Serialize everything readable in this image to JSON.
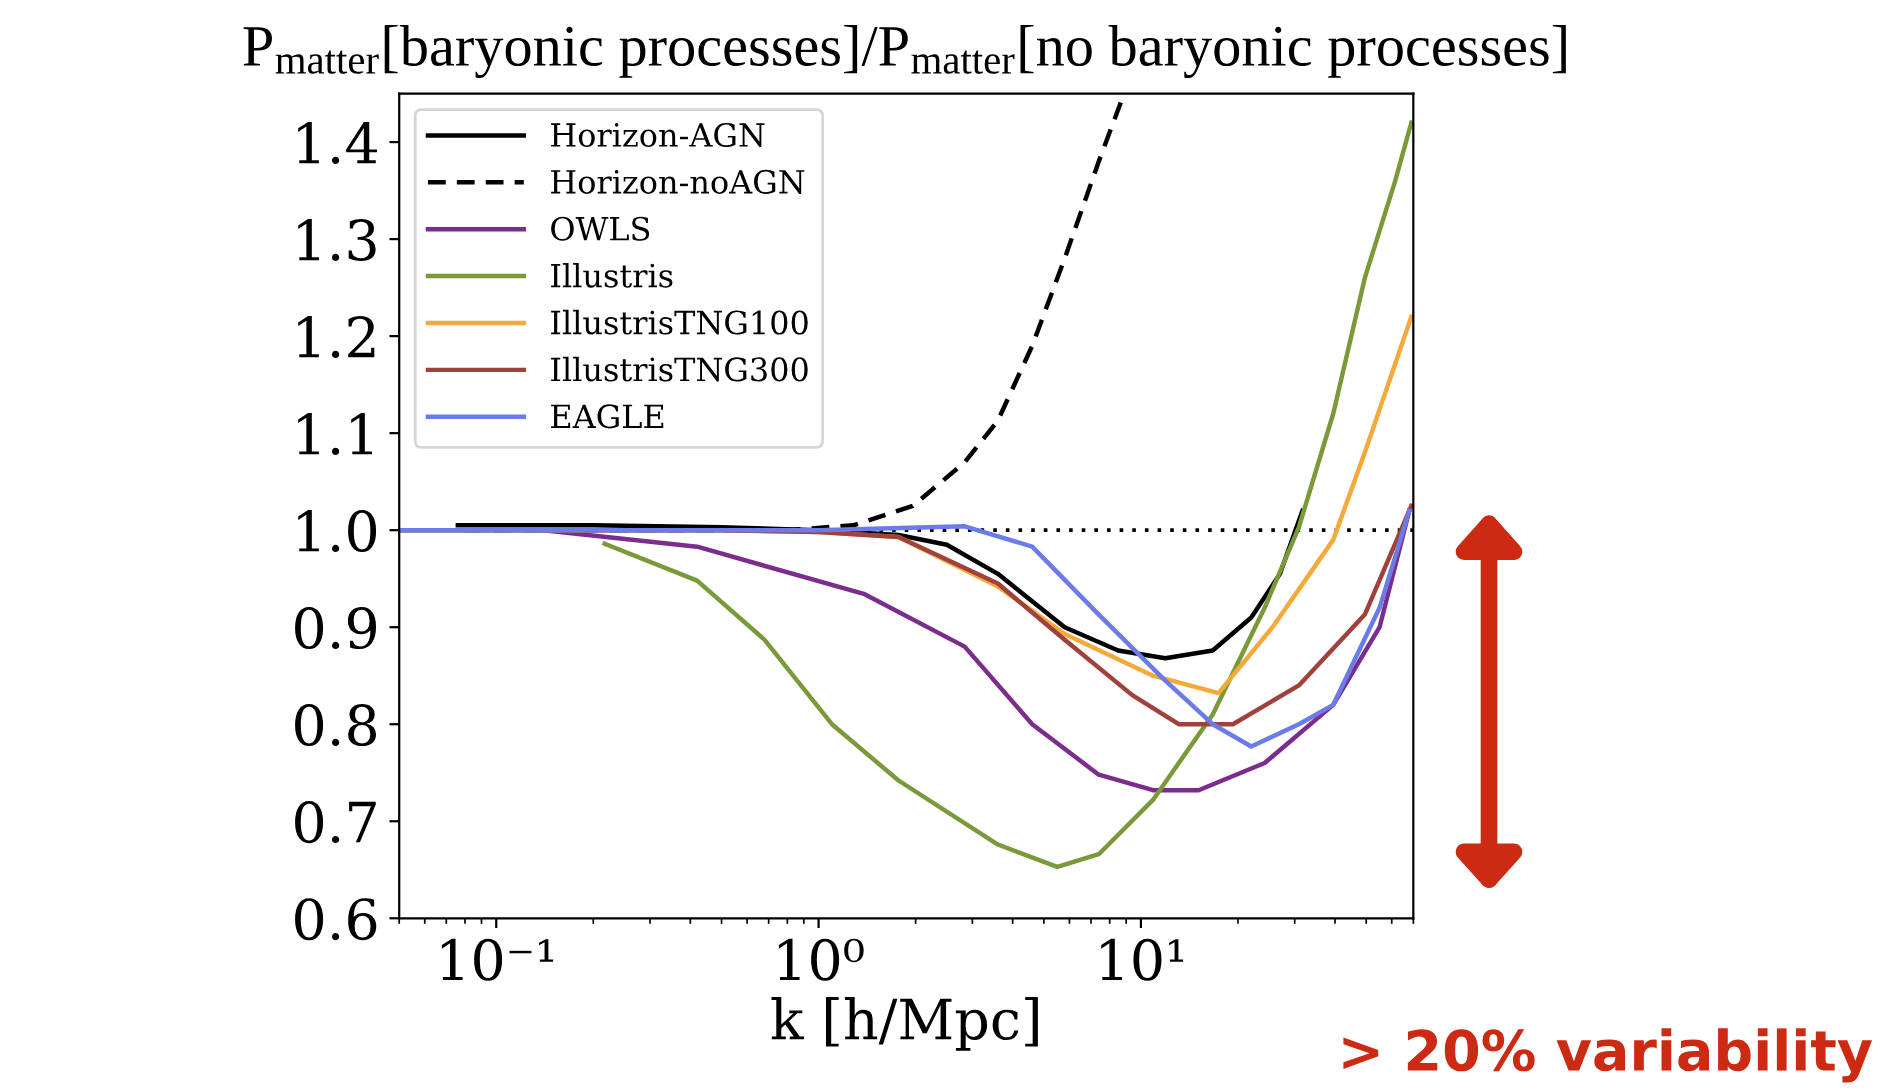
{
  "chart_data": {
    "type": "line",
    "title": "P$_{matter}$[baryonic processes]/P$_{matter}$[no baryonic processes]",
    "xlabel": "k [h/Mpc]",
    "log": "x",
    "xlim": [
      0.05,
      70
    ],
    "ylim": [
      0.6,
      1.45
    ],
    "xticks": [
      {
        "value": 0.1,
        "label": "10⁻¹"
      },
      {
        "value": 1,
        "label": "10⁰"
      },
      {
        "value": 10,
        "label": "10¹"
      }
    ],
    "yticks": [
      0.6,
      0.7,
      0.8,
      0.9,
      {
        "value": 1,
        "label": "1.0"
      },
      1.1,
      1.2,
      1.3,
      1.4
    ],
    "grid": false,
    "legend": "top left",
    "marker": "none",
    "ref_lines": [
      {
        "axis": "y",
        "value": 1.0,
        "label": null,
        "color": "#000000",
        "line_style": "dotted"
      }
    ],
    "annotations": [
      "> 20% variability"
    ],
    "series": [
      {
        "name": "Horizon-AGN",
        "color": "#000000",
        "line_style": "solid",
        "x": [
          0.076,
          0.2,
          0.5,
          1.0,
          1.77,
          2.5,
          3.6,
          5.8,
          8.5,
          11.9,
          16.7,
          22,
          27,
          31.7
        ],
        "values": [
          1.005,
          1.005,
          1.003,
          1.0,
          0.995,
          0.985,
          0.955,
          0.9,
          0.876,
          0.868,
          0.876,
          0.91,
          0.955,
          1.02
        ]
      },
      {
        "name": "Horizon-noAGN",
        "color": "#000000",
        "line_style": "dashed",
        "x": [
          0.08,
          0.3,
          0.8,
          1.28,
          1.96,
          2.84,
          3.6,
          4.6,
          5.8,
          7.4,
          8.8
        ],
        "values": [
          1.0,
          1.0,
          1.0,
          1.005,
          1.025,
          1.07,
          1.113,
          1.19,
          1.28,
          1.38,
          1.447
        ]
      },
      {
        "name": "OWLS",
        "color": "#7b2d8e",
        "line_style": "solid",
        "x": [
          0.14,
          0.42,
          1.39,
          2.84,
          4.6,
          7.4,
          10.9,
          15.1,
          24.2,
          39.5,
          55,
          68
        ],
        "values": [
          1.0,
          0.983,
          0.934,
          0.88,
          0.8,
          0.748,
          0.732,
          0.732,
          0.76,
          0.82,
          0.9,
          1.02
        ]
      },
      {
        "name": "Illustris",
        "color": "#7a9a3a",
        "line_style": "solid",
        "x": [
          0.217,
          0.42,
          0.68,
          1.1,
          1.77,
          3.6,
          5.5,
          7.4,
          10.9,
          16.7,
          24.2,
          30.9,
          39.5,
          49.5,
          61.5,
          69
        ],
        "values": [
          0.986,
          0.948,
          0.887,
          0.8,
          0.742,
          0.676,
          0.653,
          0.666,
          0.722,
          0.81,
          0.92,
          1.003,
          1.12,
          1.26,
          1.36,
          1.42
        ]
      },
      {
        "name": "IllustrisTNG100",
        "color": "#f5a93a",
        "line_style": "solid",
        "x": [
          0.05,
          0.5,
          1.0,
          1.77,
          3.6,
          5.8,
          10.9,
          17.4,
          25.6,
          39.5,
          49.5,
          69
        ],
        "values": [
          1.0,
          1.0,
          0.998,
          0.993,
          0.942,
          0.893,
          0.85,
          0.832,
          0.9,
          0.99,
          1.08,
          1.22
        ]
      },
      {
        "name": "IllustrisTNG300",
        "color": "#a0413c",
        "line_style": "solid",
        "x": [
          0.05,
          0.5,
          1.0,
          1.77,
          3.6,
          5.8,
          9.4,
          13.1,
          19.3,
          30.9,
          49.5,
          69
        ],
        "values": [
          1.0,
          1.0,
          0.998,
          0.993,
          0.945,
          0.887,
          0.83,
          0.8,
          0.8,
          0.84,
          0.913,
          1.025
        ]
      },
      {
        "name": "EAGLE",
        "color": "#6b7be8",
        "line_style": "solid",
        "x": [
          0.05,
          0.5,
          1.0,
          2.84,
          4.6,
          7.4,
          11.9,
          16.7,
          22,
          30.9,
          39.5,
          55,
          68
        ],
        "values": [
          1.0,
          1.0,
          1.0,
          1.004,
          0.983,
          0.913,
          0.845,
          0.8,
          0.777,
          0.8,
          0.82,
          0.92,
          1.02
        ]
      }
    ]
  }
}
